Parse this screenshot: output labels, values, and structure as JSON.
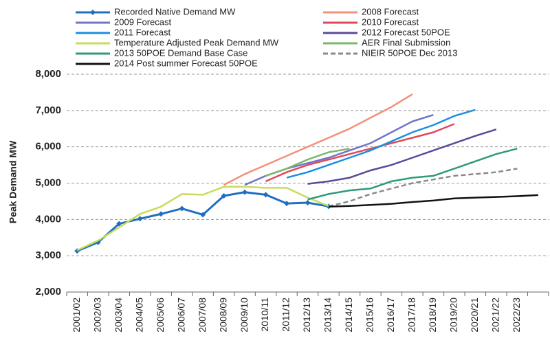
{
  "chart_data": {
    "type": "line",
    "y_label": "Peak Demand MW",
    "categories": [
      "2001/02",
      "2002/03",
      "2003/04",
      "2004/05",
      "2005/06",
      "2006/07",
      "2007/08",
      "2008/09",
      "2009/10",
      "2010/11",
      "2011/12",
      "2012/13",
      "2013/14",
      "2014/15",
      "2015/16",
      "2016/17",
      "2017/18",
      "2018/19",
      "2019/20",
      "2020/21",
      "2021/22",
      "2022/23",
      null
    ],
    "ylim": [
      2000,
      8000
    ],
    "yticks": [
      {
        "value": 2000,
        "label": "2,000"
      },
      {
        "value": 3000,
        "label": "3,000"
      },
      {
        "value": 4000,
        "label": "4,000"
      },
      {
        "value": 5000,
        "label": "5,000"
      },
      {
        "value": 6000,
        "label": "6,000"
      },
      {
        "value": 7000,
        "label": "7,000"
      },
      {
        "value": 8000,
        "label": "8,000"
      }
    ],
    "grid": true,
    "series": [
      {
        "name": "Recorded Native Demand MW",
        "color": "#1f6fc0",
        "marker": "diamond",
        "values": [
          3130,
          3370,
          3880,
          4020,
          4150,
          4300,
          4130,
          4650,
          4750,
          4680,
          4440,
          4460,
          4360,
          null,
          null,
          null,
          null,
          null,
          null,
          null,
          null,
          null,
          null
        ]
      },
      {
        "name": "2008 Forecast",
        "color": "#f4907a",
        "values": [
          null,
          null,
          null,
          null,
          null,
          null,
          null,
          4950,
          5250,
          5500,
          5750,
          6000,
          6250,
          6500,
          6800,
          7100,
          7450,
          null,
          null,
          null,
          null,
          null,
          null
        ]
      },
      {
        "name": "2009 Forecast",
        "color": "#6f74c6",
        "values": [
          null,
          null,
          null,
          null,
          null,
          null,
          null,
          null,
          4950,
          5200,
          5400,
          5550,
          5700,
          5900,
          6100,
          6400,
          6700,
          6880,
          null,
          null,
          null,
          null,
          null
        ]
      },
      {
        "name": "2010 Forecast",
        "color": "#e0485a",
        "values": [
          null,
          null,
          null,
          null,
          null,
          null,
          null,
          null,
          null,
          5050,
          5300,
          5500,
          5650,
          5800,
          5950,
          6100,
          6250,
          6400,
          6630,
          null,
          null,
          null,
          null
        ]
      },
      {
        "name": "2011 Forecast",
        "color": "#1a8fe0",
        "values": [
          null,
          null,
          null,
          null,
          null,
          null,
          null,
          null,
          null,
          null,
          5150,
          5300,
          5500,
          5700,
          5900,
          6150,
          6400,
          6600,
          6850,
          7020,
          null,
          null,
          null
        ]
      },
      {
        "name": "2012 Forecast 50POE",
        "color": "#5a4a9a",
        "values": [
          null,
          null,
          null,
          null,
          null,
          null,
          null,
          null,
          null,
          null,
          null,
          4980,
          5050,
          5150,
          5350,
          5500,
          5700,
          5900,
          6100,
          6300,
          6480,
          null,
          null
        ]
      },
      {
        "name": "Temperature Adjusted Peak Demand MW",
        "color": "#c8dc5a",
        "values": [
          3150,
          3420,
          3780,
          4150,
          4350,
          4700,
          4680,
          4900,
          4900,
          4870,
          4870,
          4600,
          4370,
          null,
          null,
          null,
          null,
          null,
          null,
          null,
          null,
          null,
          null
        ]
      },
      {
        "name": "AER Final Submission",
        "color": "#7cb86a",
        "values": [
          null,
          null,
          null,
          null,
          null,
          null,
          null,
          null,
          null,
          5200,
          5400,
          5650,
          5850,
          5950,
          null,
          null,
          null,
          null,
          null,
          null,
          null,
          null,
          null
        ]
      },
      {
        "name": "2013 50POE Demand Base Case",
        "color": "#2e9a78",
        "values": [
          null,
          null,
          null,
          null,
          null,
          null,
          null,
          null,
          null,
          null,
          null,
          4550,
          4700,
          4800,
          4850,
          5050,
          5150,
          5200,
          5400,
          5600,
          5800,
          5950,
          null
        ]
      },
      {
        "name": "NIEIR 50POE Dec 2013",
        "color": "#8a8a8a",
        "dash": true,
        "values": [
          null,
          null,
          null,
          null,
          null,
          null,
          null,
          null,
          null,
          null,
          null,
          null,
          4360,
          4500,
          4700,
          4850,
          5000,
          5100,
          5200,
          5250,
          5300,
          5400,
          null
        ]
      },
      {
        "name": "2014 Post summer Forecast 50POE",
        "color": "#111111",
        "values": [
          null,
          null,
          null,
          null,
          null,
          null,
          null,
          null,
          null,
          null,
          null,
          null,
          4350,
          4370,
          4400,
          4430,
          4480,
          4520,
          4580,
          4600,
          4620,
          4640,
          4670
        ]
      }
    ]
  }
}
